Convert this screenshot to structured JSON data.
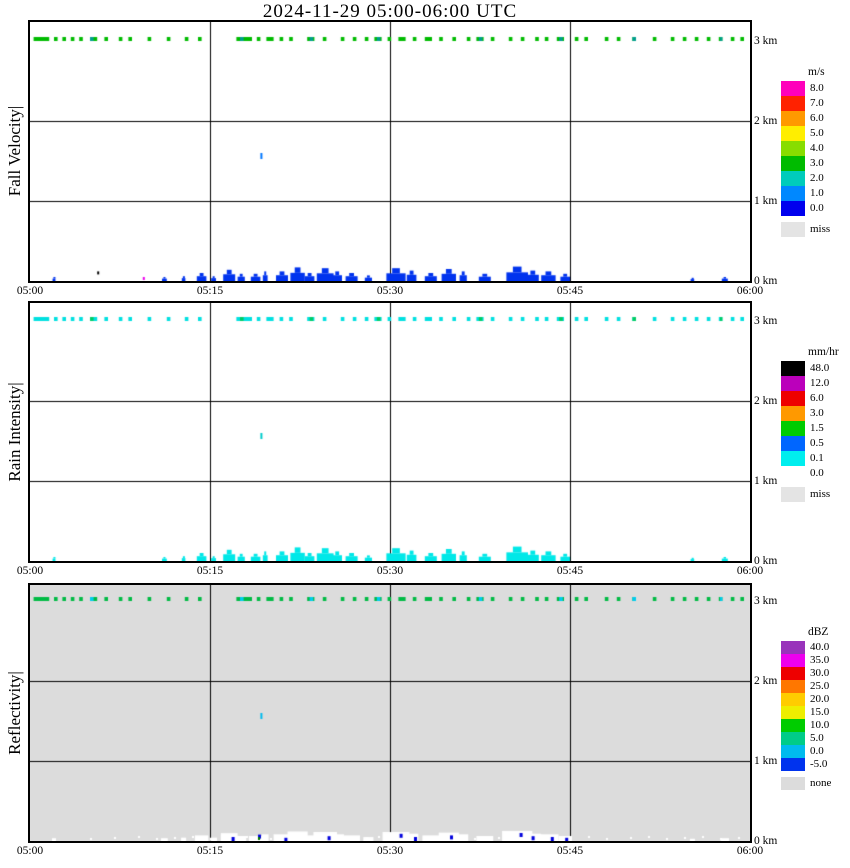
{
  "title": "2024-11-29  05:00-06:00 UTC",
  "chart_data": {
    "type": "heatmap",
    "title": "2024-11-29  05:00-06:00 UTC",
    "x": {
      "ticks": [
        "05:00",
        "05:15",
        "05:30",
        "05:45",
        "06:00"
      ],
      "tick_minutes": [
        0,
        15,
        30,
        45,
        60
      ],
      "grid_minutes": [
        15,
        30,
        45
      ],
      "range_minutes": [
        0,
        60
      ]
    },
    "y": {
      "ticks": [
        "3 km",
        "2 km",
        "1 km",
        "0 km"
      ],
      "tick_km": [
        3,
        2,
        1,
        0
      ],
      "grid_km": [
        1,
        2
      ]
    },
    "panels": [
      {
        "id": "fall-velocity",
        "ylabel": "Fall Velocity|",
        "legend_title": "m/s",
        "y_max_km": 3.2375,
        "plot_bg": "#ffffff",
        "band_color": "#00bb00",
        "accent_color": "#009e8e",
        "cluster_color": "#0033ee",
        "mid_point": {
          "t": 19.2,
          "h": 1.6,
          "color": "#0077ff"
        },
        "special_points": [
          {
            "t": 5.6,
            "h": 0.12,
            "color": "#000000"
          },
          {
            "t": 9.4,
            "h": 0.05,
            "color": "#ee00ee"
          }
        ],
        "legend": [
          {
            "label": "8.0",
            "color": "#ff00bb"
          },
          {
            "label": "7.0",
            "color": "#ff2200"
          },
          {
            "label": "6.0",
            "color": "#ff9900"
          },
          {
            "label": "5.0",
            "color": "#ffee00"
          },
          {
            "label": "4.0",
            "color": "#88dd00"
          },
          {
            "label": "3.0",
            "color": "#00bb00"
          },
          {
            "label": "2.0",
            "color": "#00ccbb"
          },
          {
            "label": "1.0",
            "color": "#0088ff"
          },
          {
            "label": "0.0",
            "color": "#0000ee"
          }
        ],
        "legend_miss": {
          "label": "miss",
          "color": "#e4e4e4"
        }
      },
      {
        "id": "rain-intensity",
        "ylabel": "Rain Intensity|",
        "legend_title": "mm/hr",
        "y_max_km": 3.225,
        "plot_bg": "#ffffff",
        "band_color": "#00e0e0",
        "accent_color": "#00cc66",
        "cluster_color": "#00e8e8",
        "mid_point": {
          "t": 19.2,
          "h": 1.6,
          "color": "#00cccc"
        },
        "special_points": [],
        "legend": [
          {
            "label": "48.0",
            "color": "#000000"
          },
          {
            "label": "12.0",
            "color": "#bb00bb"
          },
          {
            "label": "6.0",
            "color": "#ee0000"
          },
          {
            "label": "3.0",
            "color": "#ff9900"
          },
          {
            "label": "1.5",
            "color": "#00cc00"
          },
          {
            "label": "0.5",
            "color": "#0066ff"
          },
          {
            "label": "0.1",
            "color": "#00eeee"
          },
          {
            "label": "0.0",
            "color": "#ffffff"
          }
        ],
        "legend_miss": {
          "label": "miss",
          "color": "#e4e4e4"
        }
      },
      {
        "id": "reflectivity",
        "ylabel": "Reflectivity|",
        "legend_title": "dBZ",
        "y_max_km": 3.2,
        "plot_bg": "#dcdcdc",
        "band_color": "#00bb44",
        "accent_color": "#00ccee",
        "cluster_color": null,
        "white_patches": true,
        "dot_color": "#0000dd",
        "dots": [
          [
            16.8,
            0.05
          ],
          [
            19.0,
            0.08
          ],
          [
            21.2,
            0.04
          ],
          [
            24.8,
            0.06
          ],
          [
            30.8,
            0.09
          ],
          [
            32.0,
            0.05
          ],
          [
            35.0,
            0.07
          ],
          [
            40.8,
            0.1
          ],
          [
            41.8,
            0.06
          ],
          [
            43.4,
            0.05
          ],
          [
            44.6,
            0.04
          ]
        ],
        "mid_point": {
          "t": 19.2,
          "h": 1.6,
          "color": "#00bbee"
        },
        "special_points": [
          {
            "t": 19.0,
            "h": 0.05,
            "color": "#007700"
          }
        ],
        "legend": [
          {
            "label": "40.0",
            "color": "#9933bb"
          },
          {
            "label": "35.0",
            "color": "#ee00ee"
          },
          {
            "label": "30.0",
            "color": "#ee0000"
          },
          {
            "label": "25.0",
            "color": "#ff7700"
          },
          {
            "label": "20.0",
            "color": "#ffcc00"
          },
          {
            "label": "15.0",
            "color": "#eeee00"
          },
          {
            "label": "10.0",
            "color": "#00cc00"
          },
          {
            "label": "5.0",
            "color": "#00cc88"
          },
          {
            "label": "0.0",
            "color": "#00bbee"
          },
          {
            "label": "-5.0",
            "color": "#0033ee"
          }
        ],
        "legend_miss": {
          "label": "none",
          "color": "#dcdcdc"
        }
      }
    ],
    "series": {
      "top_band_h_km": 3.05,
      "top_band_segments": [
        [
          0.3,
          1.6
        ],
        [
          2.0,
          2.3
        ],
        [
          2.7,
          3.0
        ],
        [
          3.4,
          3.7
        ],
        [
          4.1,
          4.4
        ],
        [
          5.0,
          5.6
        ],
        [
          6.2,
          6.5
        ],
        [
          7.4,
          7.7
        ],
        [
          8.2,
          8.5
        ],
        [
          9.8,
          10.1
        ],
        [
          11.4,
          11.7
        ],
        [
          12.9,
          13.2
        ],
        [
          14.0,
          14.3
        ],
        [
          17.2,
          18.5
        ],
        [
          18.9,
          19.2
        ],
        [
          19.7,
          20.3
        ],
        [
          20.8,
          21.1
        ],
        [
          21.6,
          21.9
        ],
        [
          23.1,
          23.7
        ],
        [
          24.4,
          24.7
        ],
        [
          25.9,
          26.2
        ],
        [
          26.9,
          27.2
        ],
        [
          27.9,
          28.2
        ],
        [
          28.7,
          29.3
        ],
        [
          29.8,
          30.1
        ],
        [
          30.7,
          31.3
        ],
        [
          31.9,
          32.2
        ],
        [
          32.9,
          33.5
        ],
        [
          34.1,
          34.4
        ],
        [
          35.2,
          35.5
        ],
        [
          36.4,
          36.7
        ],
        [
          37.2,
          37.8
        ],
        [
          38.4,
          38.7
        ],
        [
          39.9,
          40.2
        ],
        [
          40.9,
          41.2
        ],
        [
          42.1,
          42.4
        ],
        [
          42.9,
          43.2
        ],
        [
          43.9,
          44.5
        ],
        [
          45.4,
          45.7
        ],
        [
          46.2,
          46.5
        ],
        [
          47.9,
          48.2
        ],
        [
          48.9,
          49.2
        ],
        [
          50.2,
          50.5
        ],
        [
          51.9,
          52.2
        ],
        [
          53.4,
          53.7
        ],
        [
          54.4,
          54.7
        ],
        [
          55.4,
          55.7
        ],
        [
          56.4,
          56.7
        ],
        [
          57.4,
          57.7
        ],
        [
          58.4,
          58.7
        ],
        [
          59.2,
          59.5
        ]
      ],
      "accent_segments": [
        [
          5.0,
          5.3
        ],
        [
          17.5,
          17.8
        ],
        [
          23.3,
          23.6
        ],
        [
          28.9,
          29.2
        ],
        [
          37.4,
          37.7
        ],
        [
          44.1,
          44.4
        ],
        [
          50.2,
          50.5
        ],
        [
          57.5,
          57.7
        ]
      ],
      "bottom_clusters": [
        [
          2.0,
          0.12,
          0.05
        ],
        [
          11.2,
          0.2,
          0.05
        ],
        [
          12.8,
          0.15,
          0.06
        ],
        [
          14.3,
          0.4,
          0.1
        ],
        [
          15.3,
          0.2,
          0.06
        ],
        [
          16.6,
          0.5,
          0.14
        ],
        [
          17.6,
          0.3,
          0.09
        ],
        [
          18.8,
          0.4,
          0.09
        ],
        [
          19.6,
          0.2,
          0.12
        ],
        [
          21.0,
          0.5,
          0.12
        ],
        [
          22.3,
          0.6,
          0.17
        ],
        [
          23.3,
          0.4,
          0.1
        ],
        [
          24.6,
          0.7,
          0.16
        ],
        [
          25.6,
          0.4,
          0.12
        ],
        [
          26.8,
          0.5,
          0.1
        ],
        [
          28.2,
          0.3,
          0.07
        ],
        [
          30.5,
          0.8,
          0.16
        ],
        [
          31.8,
          0.4,
          0.13
        ],
        [
          33.4,
          0.5,
          0.1
        ],
        [
          34.9,
          0.6,
          0.15
        ],
        [
          36.1,
          0.3,
          0.12
        ],
        [
          37.9,
          0.5,
          0.09
        ],
        [
          40.6,
          0.9,
          0.18
        ],
        [
          41.9,
          0.5,
          0.13
        ],
        [
          43.2,
          0.6,
          0.12
        ],
        [
          44.6,
          0.4,
          0.09
        ],
        [
          55.2,
          0.15,
          0.04
        ],
        [
          57.9,
          0.25,
          0.05
        ]
      ],
      "specks_t": [
        5,
        7,
        9,
        10.5,
        12,
        13.5,
        15,
        16,
        18,
        20,
        22,
        24,
        26,
        28,
        29,
        31,
        33,
        35,
        37,
        39,
        41,
        43,
        45,
        46.5,
        48,
        50,
        51.5,
        53,
        54.5,
        56,
        57.5,
        59
      ]
    }
  }
}
